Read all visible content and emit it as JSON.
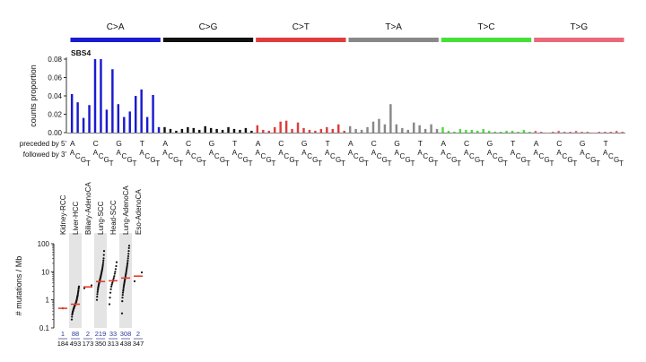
{
  "chart_data": [
    {
      "type": "bar",
      "title": "SBS4",
      "ylabel": "counts proportion",
      "ylim": [
        0,
        0.08
      ],
      "yticks": [
        "0.08",
        "0.06",
        "0.04",
        "0.02",
        "0.00"
      ],
      "row_labels": [
        "preceded by 5'",
        "followed by 3'"
      ],
      "contexts": [
        "A",
        "C",
        "G",
        "T"
      ],
      "grid": false,
      "groups": [
        {
          "name": "C>A",
          "color": "#1a1ad0",
          "values": [
            0.042,
            0.033,
            0.016,
            0.03,
            0.08,
            0.08,
            0.025,
            0.069,
            0.031,
            0.017,
            0.023,
            0.04,
            0.047,
            0.017,
            0.041,
            0.006
          ]
        },
        {
          "name": "C>G",
          "color": "#111111",
          "values": [
            0.006,
            0.004,
            0.002,
            0.004,
            0.006,
            0.005,
            0.003,
            0.007,
            0.005,
            0.004,
            0.003,
            0.006,
            0.004,
            0.003,
            0.005,
            0.002
          ]
        },
        {
          "name": "C>T",
          "color": "#e03c3c",
          "values": [
            0.008,
            0.003,
            0.002,
            0.006,
            0.012,
            0.013,
            0.004,
            0.011,
            0.005,
            0.003,
            0.002,
            0.004,
            0.006,
            0.004,
            0.009,
            0.002
          ]
        },
        {
          "name": "T>A",
          "color": "#888888",
          "values": [
            0.007,
            0.004,
            0.003,
            0.006,
            0.012,
            0.015,
            0.009,
            0.031,
            0.009,
            0.005,
            0.003,
            0.011,
            0.008,
            0.004,
            0.009,
            0.004
          ]
        },
        {
          "name": "T>C",
          "color": "#46e03a",
          "values": [
            0.006,
            0.002,
            0.001,
            0.004,
            0.003,
            0.003,
            0.002,
            0.004,
            0.002,
            0.001,
            0.001,
            0.002,
            0.002,
            0.001,
            0.003,
            0.001
          ]
        },
        {
          "name": "T>G",
          "color": "#e86a7a",
          "values": [
            0.002,
            0.001,
            0.0,
            0.001,
            0.002,
            0.001,
            0.001,
            0.002,
            0.001,
            0.001,
            0.0,
            0.001,
            0.001,
            0.001,
            0.002,
            0.001
          ]
        }
      ]
    },
    {
      "type": "scatter",
      "ylabel": "# mutations / Mb",
      "yscale": "log",
      "ylim": [
        0.1,
        100
      ],
      "yticks": [
        "100",
        "10",
        "1",
        "0.1"
      ],
      "cancers": [
        {
          "name": "Kidney-RCC",
          "with_signature": "1",
          "total": "184",
          "median": 0.5,
          "shaded": false,
          "points": [
            0.5
          ]
        },
        {
          "name": "Liver-HCC",
          "with_signature": "88",
          "total": "493",
          "median": 0.7,
          "shaded": true,
          "points": [
            0.2,
            0.25,
            0.3,
            0.32,
            0.35,
            0.38,
            0.4,
            0.42,
            0.45,
            0.48,
            0.5,
            0.52,
            0.55,
            0.58,
            0.6,
            0.62,
            0.65,
            0.68,
            0.7,
            0.72,
            0.75,
            0.8,
            0.85,
            0.9,
            0.95,
            1.0,
            1.1,
            1.2,
            1.3,
            1.4,
            1.5,
            1.7,
            1.9,
            2.1,
            2.4,
            2.7,
            3.0
          ]
        },
        {
          "name": "Biliary-AdenoCA",
          "with_signature": "2",
          "total": "173",
          "median": 2.9,
          "shaded": false,
          "points": [
            2.6,
            3.3
          ]
        },
        {
          "name": "Lung-SCC",
          "with_signature": "219",
          "total": "350",
          "median": 4.5,
          "shaded": true,
          "points": [
            1.0,
            1.3,
            1.6,
            1.9,
            2.2,
            2.5,
            2.8,
            3.1,
            3.4,
            3.7,
            4.0,
            4.3,
            4.6,
            5.0,
            5.4,
            5.8,
            6.3,
            6.8,
            7.4,
            8.0,
            8.8,
            9.6,
            10.5,
            11.5,
            12.5,
            14.0,
            16.0,
            18.0,
            21.0,
            25.0,
            30.0,
            40.0,
            55.0
          ]
        },
        {
          "name": "Head-SCC",
          "with_signature": "33",
          "total": "313",
          "median": 4.8,
          "shaded": false,
          "points": [
            0.7,
            1.2,
            1.8,
            2.4,
            3.0,
            3.5,
            4.0,
            4.6,
            5.2,
            6.0,
            7.0,
            8.5,
            10.0,
            12.5,
            16.0,
            22.0
          ]
        },
        {
          "name": "Lung-AdenoCA",
          "with_signature": "308",
          "total": "438",
          "median": 6.0,
          "shaded": true,
          "points": [
            0.33,
            0.9,
            1.2,
            1.5,
            1.8,
            2.1,
            2.4,
            2.8,
            3.2,
            3.6,
            4.0,
            4.5,
            5.0,
            5.6,
            6.2,
            7.0,
            7.8,
            8.7,
            9.7,
            11.0,
            12.5,
            14.0,
            16.0,
            18.5,
            21.0,
            25.0,
            30.0,
            36.0,
            44.0,
            55.0,
            70.0,
            85.0
          ]
        },
        {
          "name": "Eso-AdenoCA",
          "with_signature": "2",
          "total": "347",
          "median": 7.0,
          "shaded": false,
          "points": [
            4.6,
            9.5
          ]
        }
      ]
    }
  ]
}
